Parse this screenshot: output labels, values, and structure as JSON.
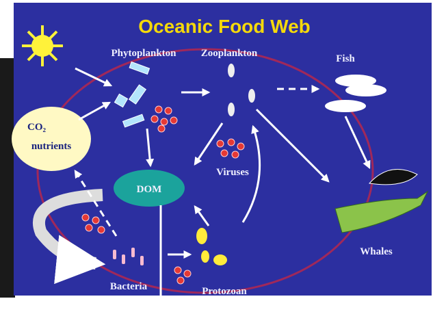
{
  "title": "Oceanic Food Web",
  "nodes": [
    {
      "label": "Phytoplankton"
    },
    {
      "label": "Zooplankton"
    },
    {
      "label": "Fish"
    },
    {
      "label": "CO₂"
    },
    {
      "label": "nutrients"
    },
    {
      "label": "DOM"
    },
    {
      "label": "Viruses"
    },
    {
      "label": "Whales"
    },
    {
      "label": "Bacteria"
    },
    {
      "label": "Protozoan"
    }
  ]
}
